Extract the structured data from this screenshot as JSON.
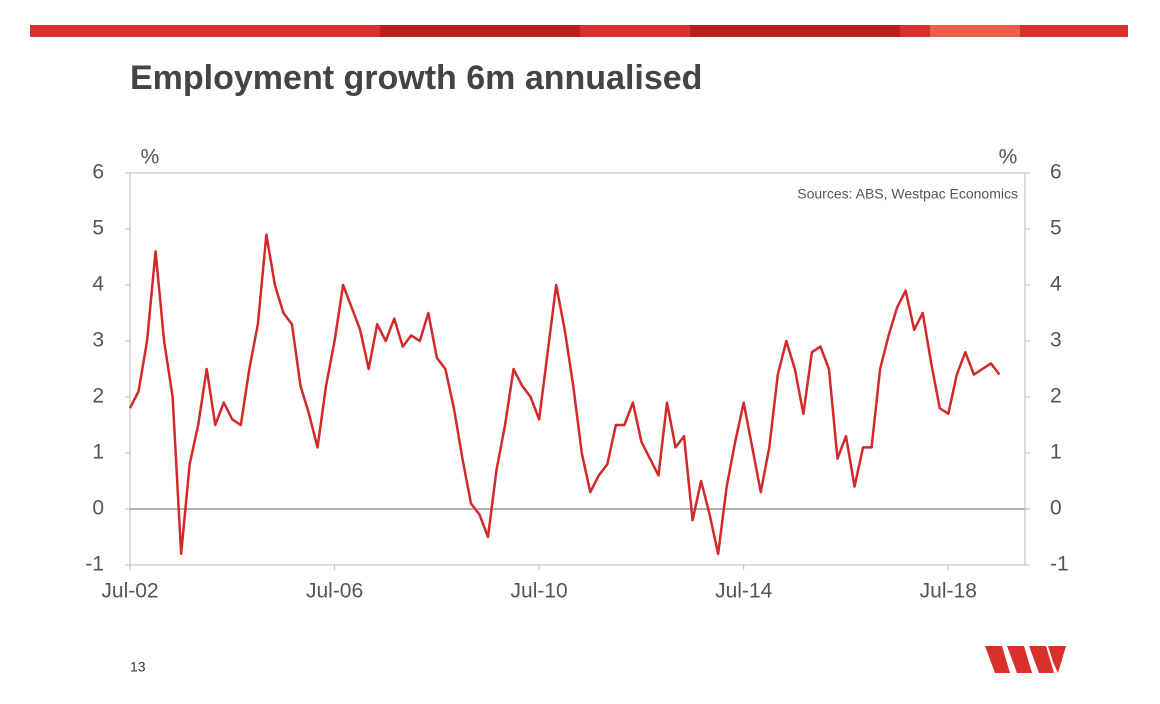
{
  "chart_data": {
    "type": "line",
    "title": "Employment growth 6m annualised",
    "y_label": "%",
    "y2_label": "%",
    "annotation": "Sources: ABS, Westpac Economics",
    "page_number": "13",
    "categories": [
      "Jul-02",
      null,
      null,
      null,
      null,
      null,
      null,
      null,
      null,
      null,
      null,
      null,
      null,
      null,
      null,
      null,
      null,
      null,
      null,
      null,
      null,
      null,
      null,
      null,
      "Jul-06",
      null,
      null,
      null,
      null,
      null,
      null,
      null,
      null,
      null,
      null,
      null,
      null,
      null,
      null,
      null,
      null,
      null,
      null,
      null,
      null,
      null,
      null,
      null,
      "Jul-10",
      null,
      null,
      null,
      null,
      null,
      null,
      null,
      null,
      null,
      null,
      null,
      null,
      null,
      null,
      null,
      null,
      null,
      null,
      null,
      null,
      null,
      null,
      null,
      "Jul-14",
      null,
      null,
      null,
      null,
      null,
      null,
      null,
      null,
      null,
      null,
      null,
      null,
      null,
      null,
      null,
      null,
      null,
      null,
      null,
      null,
      null,
      null,
      null,
      "Jul-18",
      null,
      null,
      null,
      null,
      null,
      null,
      null,
      null,
      null
    ],
    "series": [
      {
        "name": "Employment growth",
        "color": "#d22a2a",
        "values": [
          1.8,
          2.1,
          3.0,
          4.6,
          3.0,
          2.0,
          -0.8,
          0.8,
          1.5,
          2.5,
          1.5,
          1.9,
          1.6,
          1.5,
          2.5,
          3.3,
          4.9,
          4.0,
          3.5,
          3.3,
          2.2,
          1.7,
          1.1,
          2.2,
          3.0,
          4.0,
          3.6,
          3.2,
          2.5,
          3.3,
          3.0,
          3.4,
          2.9,
          3.1,
          3.0,
          3.5,
          2.7,
          2.5,
          1.8,
          0.9,
          0.1,
          -0.1,
          -0.5,
          0.7,
          1.5,
          2.5,
          2.2,
          2.0,
          1.6,
          2.8,
          4.0,
          3.2,
          2.2,
          1.0,
          0.3,
          0.6,
          0.8,
          1.5,
          1.5,
          1.9,
          1.2,
          0.9,
          0.6,
          1.9,
          1.1,
          1.3,
          -0.2,
          0.5,
          -0.1,
          -0.8,
          0.4,
          1.2,
          1.9,
          1.1,
          0.3,
          1.1,
          2.4,
          3.0,
          2.5,
          1.7,
          2.8,
          2.9,
          2.5,
          0.9,
          1.3,
          0.4,
          1.1,
          1.1,
          2.5,
          3.1,
          3.6,
          3.9,
          3.2,
          3.5,
          2.6,
          1.8,
          1.7,
          2.4,
          2.8,
          2.4,
          2.5,
          2.6,
          2.4,
          null,
          null,
          null
        ]
      }
    ],
    "ylim": [
      -1,
      6
    ],
    "yticks": [
      -1,
      0,
      1,
      2,
      3,
      4,
      5,
      6
    ],
    "y2lim": [
      -1,
      6
    ],
    "y2ticks": [
      -1,
      0,
      1,
      2,
      3,
      4,
      5,
      6
    ],
    "grid": false
  }
}
